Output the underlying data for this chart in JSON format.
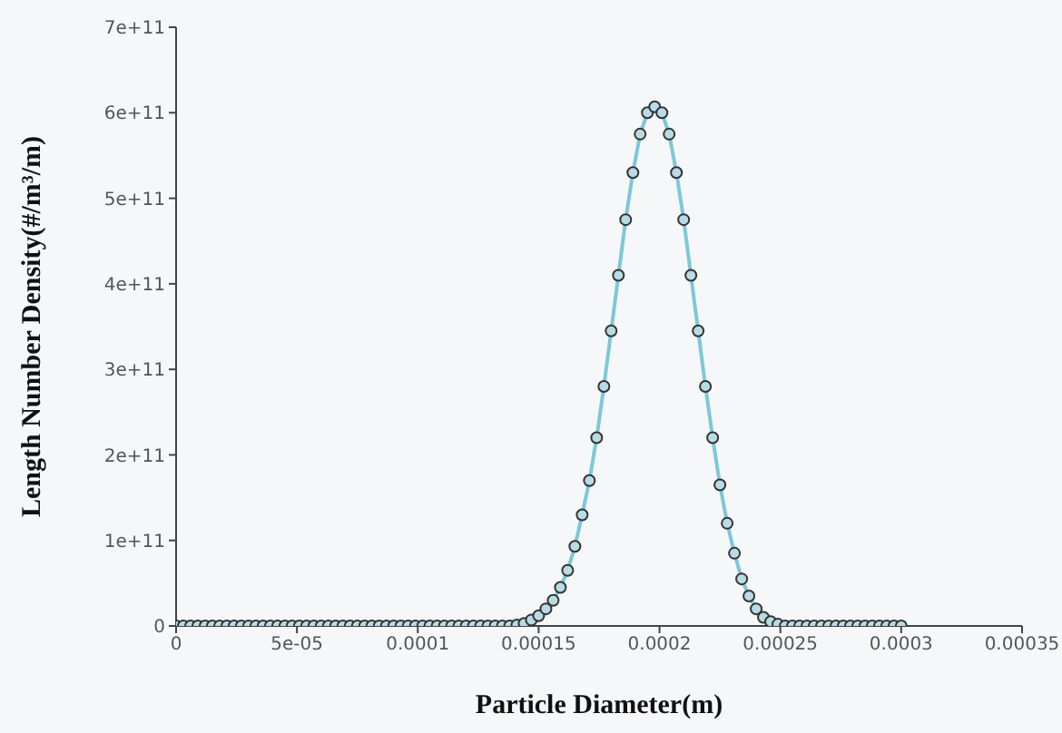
{
  "chart_data": {
    "type": "line",
    "xlabel": "Particle Diameter(m)",
    "ylabel": "Length Number Density(#/m³/m)",
    "x": [
      0,
      3e-06,
      6e-06,
      9e-06,
      1.2e-05,
      1.5e-05,
      1.8e-05,
      2.1e-05,
      2.4e-05,
      2.7e-05,
      3e-05,
      3.3e-05,
      3.6e-05,
      3.9e-05,
      4.2e-05,
      4.5e-05,
      4.8e-05,
      5.1e-05,
      5.4e-05,
      5.7e-05,
      6e-05,
      6.3e-05,
      6.6e-05,
      6.9e-05,
      7.2e-05,
      7.5e-05,
      7.8e-05,
      8.1e-05,
      8.4e-05,
      8.7e-05,
      9e-05,
      9.3e-05,
      9.6e-05,
      9.9e-05,
      0.000102,
      0.000105,
      0.000108,
      0.000111,
      0.000114,
      0.000117,
      0.00012,
      0.000123,
      0.000126,
      0.000129,
      0.000132,
      0.000135,
      0.000138,
      0.000141,
      0.000144,
      0.000147,
      0.00015,
      0.000153,
      0.000156,
      0.000159,
      0.000162,
      0.000165,
      0.000168,
      0.000171,
      0.000174,
      0.000177,
      0.00018,
      0.000183,
      0.000186,
      0.000189,
      0.000192,
      0.000195,
      0.000198,
      0.000201,
      0.000204,
      0.000207,
      0.00021,
      0.000213,
      0.000216,
      0.000219,
      0.000222,
      0.000225,
      0.000228,
      0.000231,
      0.000234,
      0.000237,
      0.00024,
      0.000243,
      0.000246,
      0.000249,
      0.000252,
      0.000255,
      0.000258,
      0.000261,
      0.000264,
      0.000267,
      0.00027,
      0.000273,
      0.000276,
      0.000279,
      0.000282,
      0.000285,
      0.000288,
      0.000291,
      0.000294,
      0.000297,
      0.0003
    ],
    "series": [
      {
        "color": "#7cc8da",
        "values": [
          0,
          0,
          0,
          0,
          0,
          0,
          0,
          0,
          0,
          0,
          0,
          0,
          0,
          0,
          0,
          0,
          0,
          0,
          0,
          0,
          0,
          0,
          0,
          0,
          0,
          0,
          0,
          0,
          0,
          0,
          0,
          0,
          0,
          0,
          0,
          0,
          0,
          0,
          0,
          0,
          0,
          0,
          0,
          0,
          0,
          0,
          0,
          1000000000.0,
          3000000000.0,
          7000000000.0,
          12000000000.0,
          20000000000.0,
          30000000000.0,
          45000000000.0,
          65000000000.0,
          93000000000.0,
          130000000000.0,
          170000000000.0,
          220000000000.0,
          280000000000.0,
          345000000000.0,
          410000000000.0,
          475000000000.0,
          530000000000.0,
          575000000000.0,
          600000000000.0,
          607000000000.0,
          600000000000.0,
          575000000000.0,
          530000000000.0,
          475000000000.0,
          410000000000.0,
          345000000000.0,
          280000000000.0,
          220000000000.0,
          165000000000.0,
          120000000000.0,
          85000000000.0,
          55000000000.0,
          35000000000.0,
          20000000000.0,
          10000000000.0,
          5000000000.0,
          2000000000.0,
          0,
          0,
          0,
          0,
          0,
          0,
          0,
          0,
          0,
          0,
          0,
          0,
          0,
          0,
          0,
          0,
          0
        ]
      }
    ],
    "xlim": [
      0,
      0.00035
    ],
    "xticks": [
      0,
      {
        "value": 5e-05,
        "label": "5e-05"
      },
      0.0001,
      0.00015,
      0.0002,
      0.00025,
      0.0003,
      0.00035
    ],
    "ylim": [
      0,
      700000000000.0
    ],
    "yticks": [
      0,
      {
        "value": 100000000000.0,
        "label": "1e+11"
      },
      {
        "value": 200000000000.0,
        "label": "2e+11"
      },
      {
        "value": 300000000000.0,
        "label": "3e+11"
      },
      {
        "value": 400000000000.0,
        "label": "4e+11"
      },
      {
        "value": 500000000000.0,
        "label": "5e+11"
      },
      {
        "value": 600000000000.0,
        "label": "6e+11"
      },
      {
        "value": 700000000000.0,
        "label": "7e+11"
      }
    ],
    "marker": "circle",
    "line_style": "solid",
    "grid": false,
    "legend": false
  }
}
